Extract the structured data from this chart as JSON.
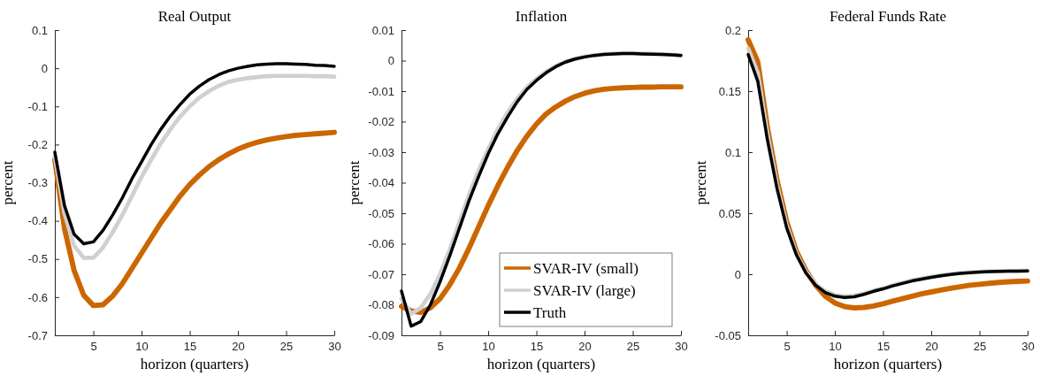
{
  "chart_data": [
    {
      "type": "line",
      "title": "Real Output",
      "xlabel": "horizon (quarters)",
      "ylabel": "percent",
      "x": [
        1,
        2,
        3,
        4,
        5,
        6,
        7,
        8,
        9,
        10,
        11,
        12,
        13,
        14,
        15,
        16,
        17,
        18,
        19,
        20,
        21,
        22,
        23,
        24,
        25,
        26,
        27,
        28,
        29,
        30
      ],
      "xlim": [
        1,
        30
      ],
      "xticks": [
        5,
        10,
        15,
        20,
        25,
        30
      ],
      "ylim": [
        -0.7,
        0.1
      ],
      "yticks": [
        -0.7,
        -0.6,
        -0.5,
        -0.4,
        -0.3,
        -0.2,
        -0.1,
        0,
        0.1
      ],
      "grid": false,
      "legend": false,
      "line_style": "solid",
      "marker": "none",
      "series": [
        {
          "color": "#cc6600",
          "values": [
            -0.24,
            -0.42,
            -0.53,
            -0.595,
            -0.622,
            -0.62,
            -0.597,
            -0.565,
            -0.525,
            -0.485,
            -0.445,
            -0.405,
            -0.37,
            -0.335,
            -0.305,
            -0.28,
            -0.258,
            -0.24,
            -0.225,
            -0.212,
            -0.202,
            -0.194,
            -0.188,
            -0.183,
            -0.179,
            -0.176,
            -0.174,
            -0.172,
            -0.17,
            -0.168
          ]
        },
        {
          "color": "#d0d0d0",
          "values": [
            -0.23,
            -0.38,
            -0.465,
            -0.497,
            -0.497,
            -0.47,
            -0.43,
            -0.385,
            -0.335,
            -0.285,
            -0.24,
            -0.197,
            -0.16,
            -0.127,
            -0.1,
            -0.077,
            -0.06,
            -0.046,
            -0.036,
            -0.03,
            -0.026,
            -0.023,
            -0.021,
            -0.02,
            -0.02,
            -0.02,
            -0.02,
            -0.021,
            -0.021,
            -0.022
          ]
        },
        {
          "color": "#000000",
          "values": [
            -0.22,
            -0.36,
            -0.435,
            -0.46,
            -0.455,
            -0.425,
            -0.385,
            -0.34,
            -0.29,
            -0.245,
            -0.2,
            -0.16,
            -0.125,
            -0.095,
            -0.068,
            -0.047,
            -0.03,
            -0.017,
            -0.007,
            0,
            0.005,
            0.009,
            0.011,
            0.012,
            0.012,
            0.011,
            0.01,
            0.008,
            0.007,
            0.005
          ]
        }
      ]
    },
    {
      "type": "line",
      "title": "Inflation",
      "xlabel": "horizon (quarters)",
      "ylabel": "percent",
      "x": [
        1,
        2,
        3,
        4,
        5,
        6,
        7,
        8,
        9,
        10,
        11,
        12,
        13,
        14,
        15,
        16,
        17,
        18,
        19,
        20,
        21,
        22,
        23,
        24,
        25,
        26,
        27,
        28,
        29,
        30
      ],
      "xlim": [
        1,
        30
      ],
      "xticks": [
        5,
        10,
        15,
        20,
        25,
        30
      ],
      "ylim": [
        -0.09,
        0.01
      ],
      "yticks": [
        -0.09,
        -0.08,
        -0.07,
        -0.06,
        -0.05,
        -0.04,
        -0.03,
        -0.02,
        -0.01,
        0,
        0.01
      ],
      "grid": false,
      "legend": "bottom right",
      "line_style": "solid",
      "marker": "none",
      "series": [
        {
          "name": "SVAR-IV (small)",
          "color": "#cc6600",
          "values": [
            -0.0805,
            -0.082,
            -0.0825,
            -0.081,
            -0.078,
            -0.0735,
            -0.068,
            -0.0615,
            -0.0545,
            -0.0475,
            -0.041,
            -0.035,
            -0.0295,
            -0.0248,
            -0.0208,
            -0.0175,
            -0.0152,
            -0.0133,
            -0.0118,
            -0.0107,
            -0.0099,
            -0.0094,
            -0.0091,
            -0.0089,
            -0.0088,
            -0.0087,
            -0.0087,
            -0.0086,
            -0.0086,
            -0.0086
          ]
        },
        {
          "name": "SVAR-IV (large)",
          "color": "#d0d0d0",
          "values": [
            -0.078,
            -0.083,
            -0.081,
            -0.0765,
            -0.07,
            -0.062,
            -0.053,
            -0.044,
            -0.036,
            -0.029,
            -0.0225,
            -0.017,
            -0.0125,
            -0.0088,
            -0.006,
            -0.0037,
            -0.0018,
            -0.0004,
            0.0006,
            0.0013,
            0.0018,
            0.0021,
            0.0023,
            0.0024,
            0.0024,
            0.0023,
            0.0022,
            0.0021,
            0.0019,
            0.0018
          ]
        },
        {
          "name": "Truth",
          "color": "#000000",
          "values": [
            -0.0755,
            -0.087,
            -0.0855,
            -0.08,
            -0.0725,
            -0.064,
            -0.055,
            -0.046,
            -0.038,
            -0.0305,
            -0.024,
            -0.0185,
            -0.0135,
            -0.0095,
            -0.0065,
            -0.004,
            -0.002,
            -0.0005,
            0.0005,
            0.0012,
            0.0017,
            0.002,
            0.0022,
            0.0023,
            0.0023,
            0.0022,
            0.0021,
            0.002,
            0.0019,
            0.0017
          ]
        }
      ]
    },
    {
      "type": "line",
      "title": "Federal Funds Rate",
      "xlabel": "horizon (quarters)",
      "ylabel": "percent",
      "x": [
        1,
        2,
        3,
        4,
        5,
        6,
        7,
        8,
        9,
        10,
        11,
        12,
        13,
        14,
        15,
        16,
        17,
        18,
        19,
        20,
        21,
        22,
        23,
        24,
        25,
        26,
        27,
        28,
        29,
        30
      ],
      "xlim": [
        1,
        30
      ],
      "xticks": [
        5,
        10,
        15,
        20,
        25,
        30
      ],
      "ylim": [
        -0.05,
        0.2
      ],
      "yticks": [
        -0.05,
        0,
        0.05,
        0.1,
        0.15,
        0.2
      ],
      "grid": false,
      "legend": false,
      "line_style": "solid",
      "marker": "none",
      "series": [
        {
          "color": "#cc6600",
          "values": [
            0.192,
            0.174,
            0.12,
            0.077,
            0.043,
            0.019,
            0.003,
            -0.009,
            -0.018,
            -0.0235,
            -0.0265,
            -0.0275,
            -0.0272,
            -0.026,
            -0.0242,
            -0.022,
            -0.02,
            -0.018,
            -0.016,
            -0.0145,
            -0.013,
            -0.0115,
            -0.0102,
            -0.009,
            -0.0082,
            -0.0074,
            -0.0067,
            -0.0062,
            -0.0058,
            -0.0055
          ]
        },
        {
          "color": "#d0d0d0",
          "values": [
            0.185,
            0.165,
            0.115,
            0.073,
            0.04,
            0.017,
            0.002,
            -0.008,
            -0.014,
            -0.017,
            -0.018,
            -0.0175,
            -0.016,
            -0.0135,
            -0.0115,
            -0.009,
            -0.007,
            -0.005,
            -0.0035,
            -0.002,
            -0.0008,
            0.0002,
            0.001,
            0.0016,
            0.002,
            0.0023,
            0.0025,
            0.0027,
            0.0028,
            0.0029
          ]
        },
        {
          "color": "#000000",
          "values": [
            0.18,
            0.158,
            0.11,
            0.07,
            0.038,
            0.016,
            0.001,
            -0.009,
            -0.015,
            -0.018,
            -0.019,
            -0.0185,
            -0.0165,
            -0.014,
            -0.012,
            -0.0095,
            -0.0075,
            -0.0055,
            -0.004,
            -0.0025,
            -0.0012,
            -0.0002,
            0.0007,
            0.0013,
            0.0018,
            0.0021,
            0.0023,
            0.0025,
            0.0026,
            0.0027
          ]
        }
      ]
    }
  ]
}
